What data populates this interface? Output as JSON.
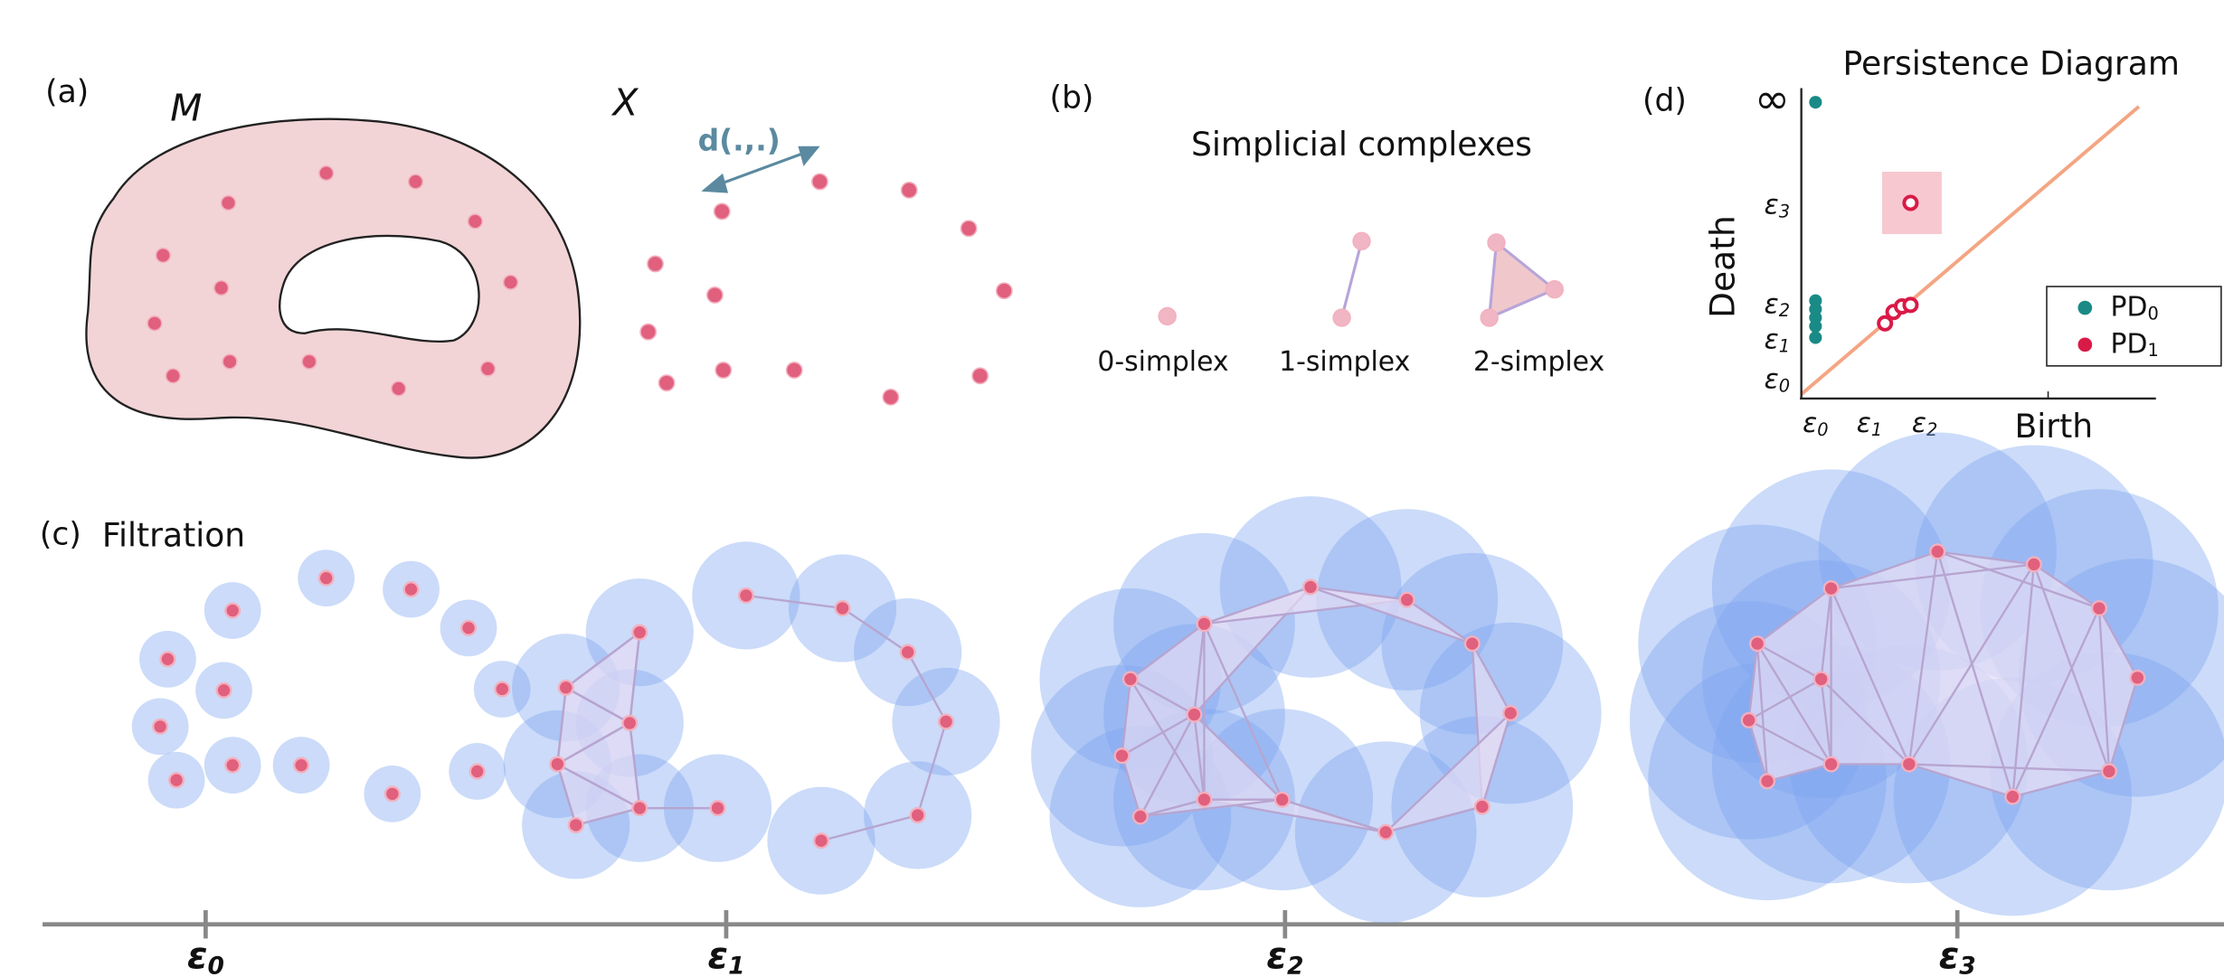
{
  "panel_a": {
    "label": "(a)",
    "manifold": "M",
    "sample": "X",
    "metric": "d(.,.)"
  },
  "panel_b": {
    "label": "(b)",
    "title": "Simplicial complexes",
    "simplices": [
      "0-simplex",
      "1-simplex",
      "2-simplex"
    ]
  },
  "panel_c": {
    "label": "(c)",
    "title": "Filtration",
    "scale_labels": [
      {
        "symbol": "ε",
        "sub": "0"
      },
      {
        "symbol": "ε",
        "sub": "1"
      },
      {
        "symbol": "ε",
        "sub": "2"
      },
      {
        "symbol": "ε",
        "sub": "3"
      }
    ]
  },
  "panel_d": {
    "label": "(d)",
    "title": "Persistence Diagram",
    "y_label": "Death",
    "x_label": "Birth",
    "y_ticks": [
      "∞",
      {
        "symbol": "ε",
        "sub": "3"
      },
      {
        "symbol": "ε",
        "sub": "2"
      },
      {
        "symbol": "ε",
        "sub": "1"
      },
      {
        "symbol": "ε",
        "sub": "0"
      }
    ],
    "x_ticks": [
      {
        "symbol": "ε",
        "sub": "0"
      },
      {
        "symbol": "ε",
        "sub": "1"
      },
      {
        "symbol": "ε",
        "sub": "2"
      }
    ],
    "legend": [
      {
        "text": "PD",
        "sub": "0"
      },
      {
        "text": "PD",
        "sub": "1"
      }
    ]
  }
}
